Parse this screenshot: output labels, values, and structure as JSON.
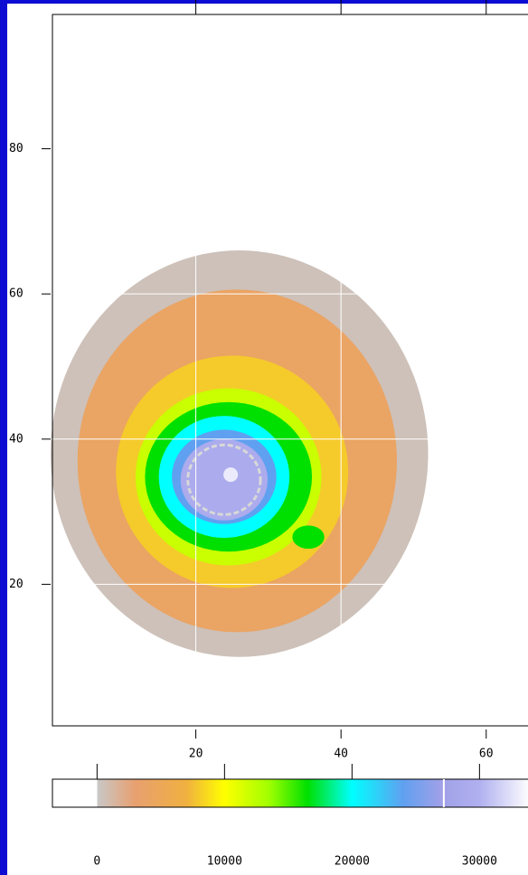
{
  "chart_data": {
    "type": "heatmap",
    "xlim": [
      0,
      68
    ],
    "ylim": [
      0,
      98.5
    ],
    "xticks": [
      20,
      40,
      60
    ],
    "yticks": [
      20,
      40,
      60,
      80
    ],
    "grid": true,
    "grid_color": "#ffffff",
    "levels": [
      {
        "value": 500,
        "cx": 26,
        "cy": 38,
        "rx": 26,
        "ry": 28
      },
      {
        "value": 4000,
        "cx": 25.7,
        "cy": 37,
        "rx": 22,
        "ry": 23.6
      },
      {
        "value": 8000,
        "cx": 25,
        "cy": 35.5,
        "rx": 16,
        "ry": 16
      },
      {
        "value": 12000,
        "cx": 24.5,
        "cy": 34.8,
        "rx": 12.8,
        "ry": 12.2
      },
      {
        "value": 16500,
        "cx": 24.5,
        "cy": 34.8,
        "rx": 11.5,
        "ry": 10.3
      },
      {
        "value": 16500,
        "cx": 35.5,
        "cy": 26.5,
        "rx": 2.2,
        "ry": 1.6
      },
      {
        "value": 20000,
        "cx": 23.9,
        "cy": 34.8,
        "rx": 9,
        "ry": 8.4
      },
      {
        "value": 24000,
        "cx": 23.9,
        "cy": 34.8,
        "rx": 7.2,
        "ry": 6.5
      },
      {
        "value": 29000,
        "cx": 23.9,
        "cy": 34.4,
        "rx": 6,
        "ry": 5.6
      },
      {
        "value": 33000,
        "cx": 24.8,
        "cy": 35.1,
        "rx": 1,
        "ry": 1
      }
    ],
    "contour": {
      "value": 27200,
      "cx": 23.9,
      "cy": 34.4,
      "rx": 5,
      "ry": 4.8,
      "color": "#d8d8d8"
    },
    "colorbar": {
      "clim": [
        -3500,
        37000
      ],
      "ticks": [
        0,
        10000,
        20000,
        30000
      ],
      "stops": [
        {
          "value": 0,
          "color": "#c8c8c8"
        },
        {
          "value": 3000,
          "color": "#e8a070"
        },
        {
          "value": 7000,
          "color": "#f0b040"
        },
        {
          "value": 10000,
          "color": "#ffff00"
        },
        {
          "value": 13500,
          "color": "#a0ff00"
        },
        {
          "value": 16500,
          "color": "#00e000"
        },
        {
          "value": 20000,
          "color": "#00ffff"
        },
        {
          "value": 24000,
          "color": "#60a0f0"
        },
        {
          "value": 27000,
          "color": "#a0a0e8"
        },
        {
          "value": 30000,
          "color": "#b0b0f0"
        },
        {
          "value": 34000,
          "color": "#ffffff"
        }
      ]
    }
  }
}
